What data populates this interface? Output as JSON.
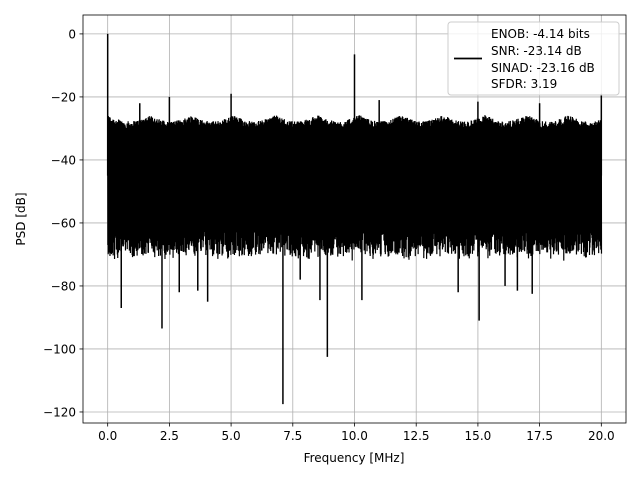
{
  "chart_data": {
    "type": "line",
    "title": "",
    "xlabel": "Frequency [MHz]",
    "ylabel": "PSD [dB]",
    "xlim": [
      -1.0,
      21.0
    ],
    "ylim": [
      -123.5,
      6.0
    ],
    "xticks": [
      0.0,
      2.5,
      5.0,
      7.5,
      10.0,
      12.5,
      15.0,
      17.5,
      20.0
    ],
    "xtick_labels": [
      "0.0",
      "2.5",
      "5.0",
      "7.5",
      "10.0",
      "12.5",
      "15.0",
      "17.5",
      "20.0"
    ],
    "yticks": [
      0,
      -20,
      -40,
      -60,
      -80,
      -100,
      -120
    ],
    "ytick_labels": [
      "0",
      "−20",
      "−40",
      "−60",
      "−80",
      "−100",
      "−120"
    ],
    "grid": true,
    "legend_position": "top-right",
    "legend_lines": [
      "ENOB: -4.14 bits",
      "SNR: -23.14 dB",
      "SINAD: -23.16 dB",
      "SFDR: 3.19"
    ],
    "line_color": "#000000",
    "series": [
      {
        "noise_floor_top": [
          -27,
          -29
        ],
        "noise_floor_bottom": [
          -63,
          -72
        ],
        "peaks": [
          {
            "x": 0.0,
            "y": 0.0
          },
          {
            "x": 1.3,
            "y": -22.0
          },
          {
            "x": 2.5,
            "y": -20.0
          },
          {
            "x": 5.0,
            "y": -19.0
          },
          {
            "x": 10.0,
            "y": -6.5
          },
          {
            "x": 11.0,
            "y": -21.0
          },
          {
            "x": 15.0,
            "y": -21.5
          },
          {
            "x": 17.5,
            "y": -22.0
          },
          {
            "x": 20.0,
            "y": -19.0
          }
        ],
        "dips": [
          {
            "x": 0.55,
            "y": -87.0
          },
          {
            "x": 2.2,
            "y": -93.5
          },
          {
            "x": 2.9,
            "y": -82.0
          },
          {
            "x": 3.65,
            "y": -81.5
          },
          {
            "x": 4.05,
            "y": -85.0
          },
          {
            "x": 7.1,
            "y": -117.5
          },
          {
            "x": 7.8,
            "y": -78.0
          },
          {
            "x": 8.6,
            "y": -84.5
          },
          {
            "x": 8.9,
            "y": -102.5
          },
          {
            "x": 10.3,
            "y": -84.5
          },
          {
            "x": 14.2,
            "y": -82.0
          },
          {
            "x": 15.05,
            "y": -91.0
          },
          {
            "x": 16.1,
            "y": -80.0
          },
          {
            "x": 16.6,
            "y": -81.5
          },
          {
            "x": 17.2,
            "y": -82.5
          }
        ]
      }
    ]
  }
}
